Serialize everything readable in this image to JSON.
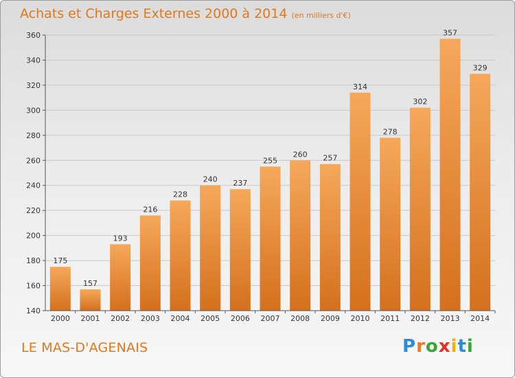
{
  "header": {
    "title": "Achats et Charges Externes 2000 à 2014",
    "subtitle": "(en milliers d'€)"
  },
  "footer": {
    "commune": "LE MAS-D'AGENAIS",
    "logo_text": "Proxiti",
    "logo_colors": [
      "#2e8bd6",
      "#e8792a",
      "#3aa53a",
      "#e0302a",
      "#f0b400",
      "#2e8bd6",
      "#3aa53a"
    ]
  },
  "chart_data": {
    "type": "bar",
    "title": "Achats et Charges Externes 2000 à 2014",
    "subtitle": "(en milliers d'€)",
    "categories": [
      "2000",
      "2001",
      "2002",
      "2003",
      "2004",
      "2005",
      "2006",
      "2007",
      "2008",
      "2009",
      "2010",
      "2011",
      "2012",
      "2013",
      "2014"
    ],
    "values": [
      175,
      157,
      193,
      216,
      228,
      240,
      237,
      255,
      260,
      257,
      314,
      278,
      302,
      357,
      329
    ],
    "ylim": [
      140,
      360
    ],
    "yticks": [
      140,
      160,
      180,
      200,
      220,
      240,
      260,
      280,
      300,
      320,
      340,
      360
    ],
    "grid": true,
    "bar_color_top": "#f6a85a",
    "bar_color_bottom": "#d4701e"
  }
}
